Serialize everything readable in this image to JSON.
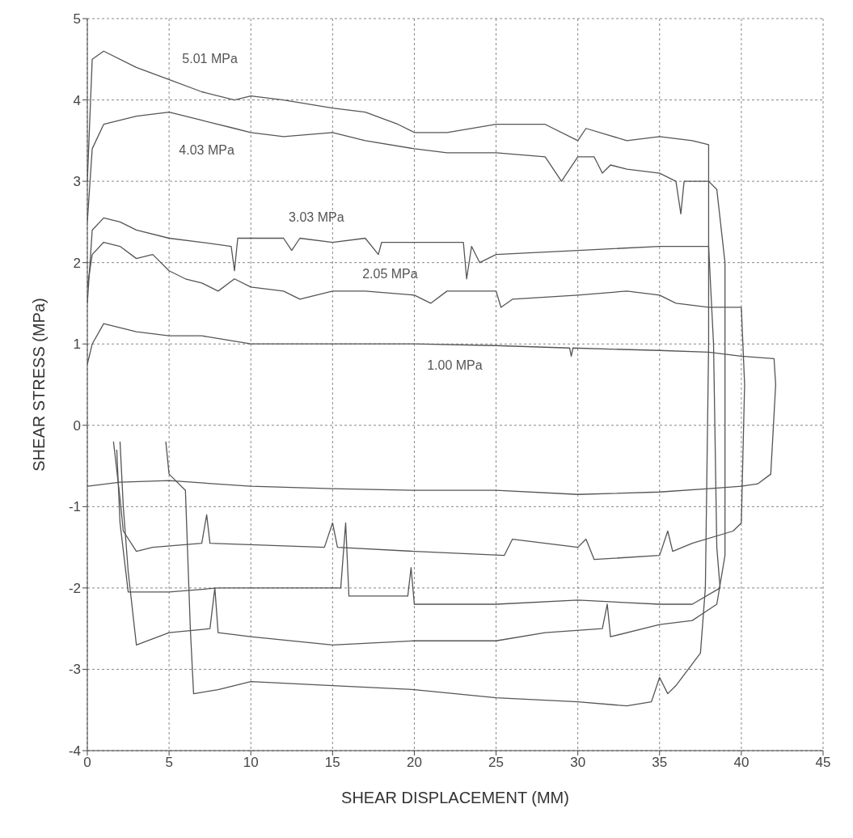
{
  "chart_data": {
    "type": "line",
    "xlabel": "SHEAR DISPLACEMENT (MM)",
    "ylabel": "SHEAR STRESS (MPa)",
    "xlim": [
      0,
      45
    ],
    "xticks": [
      0,
      5,
      10,
      15,
      20,
      25,
      30,
      35,
      40,
      45
    ],
    "ylim": [
      -4,
      5
    ],
    "yticks": [
      -4,
      -3,
      -2,
      -1,
      0,
      1,
      2,
      3,
      4,
      5
    ],
    "grid": true,
    "legend": false,
    "marker": "none",
    "line_style": "solid",
    "series": [
      {
        "name": "1.00 MPa",
        "color": "#555555",
        "x": [
          0,
          0.3,
          1,
          2,
          3,
          5,
          7,
          8.5,
          10,
          15,
          20,
          25,
          29.5,
          29.6,
          29.7,
          35,
          38,
          40,
          42,
          42.1,
          41.8,
          41,
          40,
          38,
          35,
          30,
          25,
          20,
          15,
          10,
          5,
          2,
          0
        ],
        "values": [
          0.75,
          1.0,
          1.25,
          1.2,
          1.15,
          1.1,
          1.1,
          1.05,
          1.0,
          1.0,
          1.0,
          0.98,
          0.95,
          0.85,
          0.95,
          0.92,
          0.9,
          0.85,
          0.82,
          0.5,
          -0.6,
          -0.72,
          -0.75,
          -0.78,
          -0.82,
          -0.85,
          -0.8,
          -0.8,
          -0.78,
          -0.75,
          -0.68,
          -0.7,
          -0.75
        ]
      },
      {
        "name": "2.05 MPa",
        "color": "#555555",
        "x": [
          0,
          0.3,
          1,
          2,
          3,
          4,
          5,
          6,
          7,
          8,
          9,
          10,
          12,
          13,
          15,
          17,
          20,
          21,
          22,
          25,
          25.3,
          26,
          30,
          33,
          35,
          36,
          38,
          40,
          40.2,
          40,
          39.5,
          37,
          35.8,
          35.5,
          35,
          31,
          30.5,
          30,
          26,
          25.5,
          20,
          15.3,
          15,
          14.5,
          7.5,
          7.3,
          7,
          4,
          3,
          2.2,
          2,
          1.6
        ],
        "values": [
          1.7,
          2.1,
          2.25,
          2.2,
          2.05,
          2.1,
          1.9,
          1.8,
          1.75,
          1.65,
          1.8,
          1.7,
          1.65,
          1.55,
          1.65,
          1.65,
          1.6,
          1.5,
          1.65,
          1.65,
          1.45,
          1.55,
          1.6,
          1.65,
          1.6,
          1.5,
          1.45,
          1.45,
          0.5,
          -1.2,
          -1.3,
          -1.45,
          -1.55,
          -1.3,
          -1.6,
          -1.65,
          -1.4,
          -1.5,
          -1.4,
          -1.6,
          -1.55,
          -1.5,
          -1.2,
          -1.5,
          -1.45,
          -1.1,
          -1.45,
          -1.5,
          -1.55,
          -1.3,
          -0.9,
          -0.2
        ]
      },
      {
        "name": "3.03 MPa",
        "color": "#555555",
        "x": [
          0,
          0.3,
          1,
          2,
          3,
          5,
          7,
          8.8,
          9,
          9.2,
          12,
          12.5,
          13,
          15,
          17,
          17.8,
          18,
          20,
          23,
          23.2,
          23.5,
          24,
          25,
          30,
          35,
          38,
          38.3,
          38.5,
          38.7,
          37,
          35,
          30,
          25,
          20,
          19.8,
          19.6,
          16,
          15.8,
          15.5,
          10,
          8,
          5,
          2.5,
          2,
          1.8
        ],
        "values": [
          1.5,
          2.4,
          2.55,
          2.5,
          2.4,
          2.3,
          2.25,
          2.2,
          1.9,
          2.3,
          2.3,
          2.15,
          2.3,
          2.25,
          2.3,
          2.1,
          2.25,
          2.25,
          2.25,
          1.8,
          2.2,
          2.0,
          2.1,
          2.15,
          2.2,
          2.2,
          1.0,
          -1.5,
          -2.0,
          -2.2,
          -2.2,
          -2.15,
          -2.2,
          -2.2,
          -1.75,
          -2.1,
          -2.1,
          -1.2,
          -2.0,
          -2.0,
          -2.0,
          -2.05,
          -2.05,
          -1.2,
          -0.3
        ]
      },
      {
        "name": "4.03 MPa",
        "color": "#555555",
        "x": [
          0,
          0.3,
          1,
          3,
          5,
          7,
          9,
          10,
          12,
          15,
          17,
          20,
          22,
          25,
          28,
          29,
          30,
          31,
          31.5,
          32,
          33,
          35,
          36,
          36.3,
          36.5,
          38,
          38.5,
          39,
          39,
          38.5,
          37,
          35,
          32,
          31.8,
          31.5,
          28,
          25,
          20,
          15,
          10,
          8,
          7.8,
          7.5,
          5,
          3,
          2.5,
          2.2,
          2
        ],
        "values": [
          2.5,
          3.4,
          3.7,
          3.8,
          3.85,
          3.75,
          3.65,
          3.6,
          3.55,
          3.6,
          3.5,
          3.4,
          3.35,
          3.35,
          3.3,
          3.0,
          3.3,
          3.3,
          3.1,
          3.2,
          3.15,
          3.1,
          3.0,
          2.6,
          3.0,
          3.0,
          2.9,
          2.0,
          -1.6,
          -2.2,
          -2.4,
          -2.45,
          -2.6,
          -2.2,
          -2.5,
          -2.55,
          -2.65,
          -2.65,
          -2.7,
          -2.6,
          -2.55,
          -2.0,
          -2.5,
          -2.55,
          -2.7,
          -1.8,
          -1.0,
          -0.2
        ]
      },
      {
        "name": "5.01 MPa",
        "color": "#555555",
        "x": [
          0,
          0.3,
          1,
          3,
          5,
          7,
          9,
          10,
          12,
          15,
          17,
          19,
          20,
          22,
          25,
          28,
          30,
          30.5,
          33,
          35,
          37,
          38,
          38,
          37.8,
          37.5,
          36,
          35.5,
          35,
          34.5,
          33,
          30,
          25,
          20,
          15,
          10,
          8,
          6.5,
          6.3,
          6,
          5,
          4.8
        ],
        "values": [
          3.0,
          4.5,
          4.6,
          4.4,
          4.25,
          4.1,
          4.0,
          4.05,
          4.0,
          3.9,
          3.85,
          3.7,
          3.6,
          3.6,
          3.7,
          3.7,
          3.5,
          3.65,
          3.5,
          3.55,
          3.5,
          3.45,
          1.0,
          -2.0,
          -2.8,
          -3.2,
          -3.3,
          -3.1,
          -3.4,
          -3.45,
          -3.4,
          -3.35,
          -3.25,
          -3.2,
          -3.15,
          -3.25,
          -3.3,
          -2.5,
          -0.8,
          -0.6,
          -0.2
        ]
      }
    ]
  }
}
